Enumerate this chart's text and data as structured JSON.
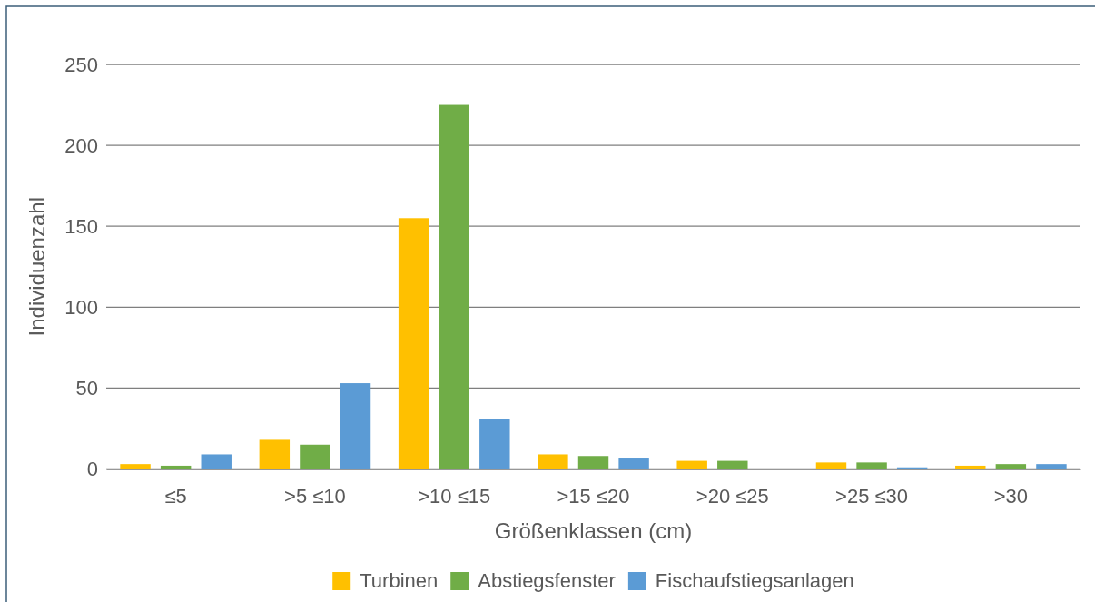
{
  "chart_data": {
    "type": "bar",
    "xlabel": "Größenklassen (cm)",
    "ylabel": "Individuenzahl",
    "categories": [
      "≤5",
      ">5 ≤10",
      ">10 ≤15",
      ">15 ≤20",
      ">20 ≤25",
      ">25 ≤30",
      ">30"
    ],
    "series": [
      {
        "name": "Turbinen",
        "color": "#ffc000",
        "values": [
          3,
          18,
          155,
          9,
          5,
          4,
          2
        ]
      },
      {
        "name": "Abstiegsfenster",
        "color": "#70ad47",
        "values": [
          2,
          15,
          225,
          8,
          5,
          4,
          3
        ]
      },
      {
        "name": "Fischaufstiegsanlagen",
        "color": "#5b9bd5",
        "values": [
          9,
          53,
          31,
          7,
          0,
          1,
          3
        ]
      }
    ],
    "ylim": [
      0,
      250
    ],
    "yticks": [
      0,
      50,
      100,
      150,
      200,
      250
    ],
    "grid": "y",
    "legend": "bottom"
  }
}
